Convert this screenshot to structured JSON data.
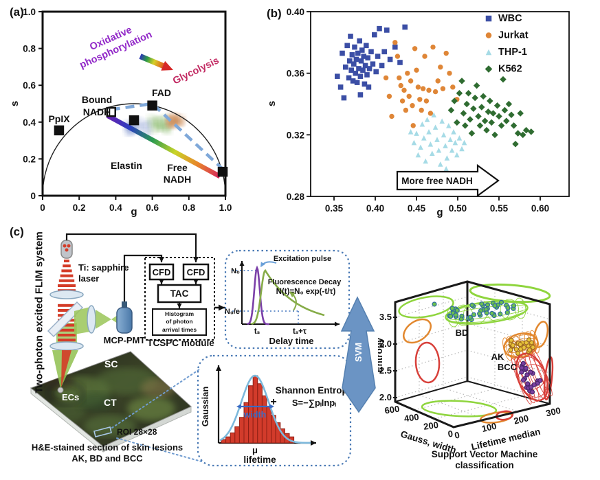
{
  "panels": {
    "a": {
      "label": "(a)"
    },
    "b": {
      "label": "(b)"
    },
    "c": {
      "label": "(c)"
    }
  },
  "chart_data": [
    {
      "id": "phasor",
      "type": "scatter",
      "xlabel": "g",
      "ylabel": "s",
      "xlim": [
        0,
        1.0
      ],
      "ylim": [
        0,
        1.0
      ],
      "xticks": [
        "0",
        "0.2",
        "0.4",
        "0.6",
        "0.8",
        "1.0"
      ],
      "yticks": [
        "0",
        "0.2",
        "0.4",
        "0.6",
        "0.8",
        "1.0"
      ],
      "semicircle": {
        "cx": 0.5,
        "cy": 0,
        "r": 0.5
      },
      "markers": [
        {
          "label": "PpIX",
          "g": 0.09,
          "s": 0.355,
          "style": "filled"
        },
        {
          "label": "Bound NADH",
          "g": 0.375,
          "s": 0.455,
          "style": "open"
        },
        {
          "label": "Elastin",
          "g": 0.5,
          "s": 0.41,
          "style": "filled"
        },
        {
          "label": "FAD",
          "g": 0.6,
          "s": 0.49,
          "style": "filled"
        },
        {
          "label": "Free NADH",
          "g": 0.985,
          "s": 0.13,
          "style": "filled"
        }
      ],
      "dashed_path": [
        [
          0.375,
          0.468
        ],
        [
          0.6,
          0.5
        ],
        [
          0.985,
          0.145
        ]
      ],
      "rainbow_line": {
        "from": [
          0.355,
          0.435
        ],
        "to": [
          0.97,
          0.105
        ]
      },
      "rainbow_colors": [
        "#6a1fb0",
        "#2b3fc0",
        "#2a9a50",
        "#c8d428",
        "#e8862a",
        "#d6265c"
      ],
      "process_arrow": {
        "start_label": "Oxidative\nphosphorylation",
        "end_label": "Glycolysis",
        "start_color": "#9229c8",
        "end_color": "#c22a62"
      },
      "clusters": [
        {
          "color": "#6f87c8",
          "cx": 0.525,
          "cy": 0.372,
          "sx": 0.055,
          "sy": 0.038
        },
        {
          "color": "#7fb45f",
          "cx": 0.638,
          "cy": 0.388,
          "sx": 0.045,
          "sy": 0.028
        },
        {
          "color": "#c8824a",
          "cx": 0.725,
          "cy": 0.402,
          "sx": 0.04,
          "sy": 0.025
        }
      ]
    },
    {
      "id": "cells",
      "type": "scatter",
      "xlabel": "g",
      "ylabel": "s",
      "xlim": [
        0.322,
        0.635
      ],
      "ylim": [
        0.28,
        0.4
      ],
      "xticks": [
        "0.35",
        "0.40",
        "0.45",
        "0.50",
        "0.55",
        "0.60"
      ],
      "yticks": [
        "0.28",
        "0.32",
        "0.36",
        "0.40"
      ],
      "annotation": "More free NADH",
      "series": [
        {
          "name": "WBC",
          "marker": "square",
          "color": "#3b4ea5",
          "points": [
            [
              0.354,
              0.358
            ],
            [
              0.358,
              0.351
            ],
            [
              0.36,
              0.373
            ],
            [
              0.362,
              0.344
            ],
            [
              0.364,
              0.364
            ],
            [
              0.366,
              0.378
            ],
            [
              0.368,
              0.357
            ],
            [
              0.369,
              0.368
            ],
            [
              0.37,
              0.384
            ],
            [
              0.371,
              0.362
            ],
            [
              0.372,
              0.372
            ],
            [
              0.373,
              0.355
            ],
            [
              0.374,
              0.366
            ],
            [
              0.375,
              0.377
            ],
            [
              0.376,
              0.36
            ],
            [
              0.377,
              0.369
            ],
            [
              0.378,
              0.354
            ],
            [
              0.379,
              0.373
            ],
            [
              0.38,
              0.363
            ],
            [
              0.381,
              0.381
            ],
            [
              0.382,
              0.346
            ],
            [
              0.382,
              0.358
            ],
            [
              0.383,
              0.368
            ],
            [
              0.384,
              0.375
            ],
            [
              0.385,
              0.362
            ],
            [
              0.386,
              0.371
            ],
            [
              0.387,
              0.353
            ],
            [
              0.388,
              0.365
            ],
            [
              0.389,
              0.378
            ],
            [
              0.39,
              0.359
            ],
            [
              0.391,
              0.37
            ],
            [
              0.392,
              0.351
            ],
            [
              0.393,
              0.363
            ],
            [
              0.395,
              0.374
            ],
            [
              0.397,
              0.366
            ],
            [
              0.399,
              0.385
            ],
            [
              0.401,
              0.361
            ],
            [
              0.403,
              0.371
            ],
            [
              0.405,
              0.389
            ],
            [
              0.408,
              0.365
            ],
            [
              0.411,
              0.374
            ],
            [
              0.414,
              0.388
            ],
            [
              0.418,
              0.369
            ],
            [
              0.424,
              0.377
            ],
            [
              0.43,
              0.367
            ],
            [
              0.436,
              0.39
            ]
          ]
        },
        {
          "name": "Jurkat",
          "marker": "circle",
          "color": "#df8637",
          "points": [
            [
              0.413,
              0.357
            ],
            [
              0.417,
              0.345
            ],
            [
              0.42,
              0.332
            ],
            [
              0.424,
              0.38
            ],
            [
              0.427,
              0.371
            ],
            [
              0.429,
              0.357
            ],
            [
              0.431,
              0.352
            ],
            [
              0.433,
              0.342
            ],
            [
              0.435,
              0.349
            ],
            [
              0.437,
              0.336
            ],
            [
              0.439,
              0.36
            ],
            [
              0.441,
              0.345
            ],
            [
              0.443,
              0.355
            ],
            [
              0.445,
              0.339
            ],
            [
              0.446,
              0.326
            ],
            [
              0.448,
              0.376
            ],
            [
              0.45,
              0.362
            ],
            [
              0.452,
              0.351
            ],
            [
              0.454,
              0.343
            ],
            [
              0.456,
              0.336
            ],
            [
              0.458,
              0.35
            ],
            [
              0.46,
              0.371
            ],
            [
              0.462,
              0.342
            ],
            [
              0.465,
              0.349
            ],
            [
              0.467,
              0.334
            ],
            [
              0.47,
              0.377
            ],
            [
              0.473,
              0.348
            ],
            [
              0.476,
              0.355
            ],
            [
              0.479,
              0.364
            ],
            [
              0.482,
              0.35
            ],
            [
              0.486,
              0.373
            ],
            [
              0.49,
              0.36
            ],
            [
              0.494,
              0.351
            ],
            [
              0.499,
              0.343
            ]
          ]
        },
        {
          "name": "THP-1",
          "marker": "triangle",
          "color": "#a6dbe6",
          "points": [
            [
              0.443,
              0.322
            ],
            [
              0.447,
              0.315
            ],
            [
              0.45,
              0.321
            ],
            [
              0.452,
              0.307
            ],
            [
              0.455,
              0.312
            ],
            [
              0.457,
              0.327
            ],
            [
              0.459,
              0.318
            ],
            [
              0.461,
              0.303
            ],
            [
              0.463,
              0.33
            ],
            [
              0.465,
              0.322
            ],
            [
              0.467,
              0.314
            ],
            [
              0.469,
              0.308
            ],
            [
              0.471,
              0.333
            ],
            [
              0.473,
              0.325
            ],
            [
              0.475,
              0.317
            ],
            [
              0.477,
              0.31
            ],
            [
              0.479,
              0.301
            ],
            [
              0.481,
              0.329
            ],
            [
              0.483,
              0.32
            ],
            [
              0.485,
              0.313
            ],
            [
              0.487,
              0.305
            ],
            [
              0.489,
              0.326
            ],
            [
              0.491,
              0.317
            ],
            [
              0.493,
              0.31
            ],
            [
              0.495,
              0.322
            ],
            [
              0.497,
              0.315
            ],
            [
              0.499,
              0.307
            ],
            [
              0.502,
              0.318
            ],
            [
              0.505,
              0.311
            ],
            [
              0.508,
              0.315
            ],
            [
              0.486,
              0.298
            ]
          ]
        },
        {
          "name": "K562",
          "marker": "diamond",
          "color": "#2f6c31",
          "points": [
            [
              0.492,
              0.336
            ],
            [
              0.496,
              0.342
            ],
            [
              0.499,
              0.328
            ],
            [
              0.502,
              0.347
            ],
            [
              0.505,
              0.355
            ],
            [
              0.507,
              0.334
            ],
            [
              0.509,
              0.326
            ],
            [
              0.511,
              0.34
            ],
            [
              0.513,
              0.347
            ],
            [
              0.515,
              0.33
            ],
            [
              0.517,
              0.321
            ],
            [
              0.519,
              0.337
            ],
            [
              0.521,
              0.344
            ],
            [
              0.523,
              0.352
            ],
            [
              0.525,
              0.332
            ],
            [
              0.527,
              0.326
            ],
            [
              0.529,
              0.338
            ],
            [
              0.531,
              0.345
            ],
            [
              0.533,
              0.329
            ],
            [
              0.535,
              0.323
            ],
            [
              0.537,
              0.335
            ],
            [
              0.539,
              0.342
            ],
            [
              0.541,
              0.328
            ],
            [
              0.543,
              0.334
            ],
            [
              0.545,
              0.32
            ],
            [
              0.548,
              0.339
            ],
            [
              0.55,
              0.332
            ],
            [
              0.553,
              0.326
            ],
            [
              0.555,
              0.356
            ],
            [
              0.557,
              0.336
            ],
            [
              0.559,
              0.329
            ],
            [
              0.562,
              0.34
            ],
            [
              0.565,
              0.333
            ],
            [
              0.568,
              0.326
            ],
            [
              0.57,
              0.314
            ],
            [
              0.573,
              0.321
            ],
            [
              0.576,
              0.334
            ],
            [
              0.579,
              0.32
            ],
            [
              0.583,
              0.323
            ],
            [
              0.589,
              0.322
            ]
          ]
        }
      ]
    },
    {
      "id": "decay",
      "type": "line",
      "xlabel": "Delay time",
      "annotations": {
        "excitation": "Excitation pulse",
        "decay": "Fluorescence Decay",
        "formula": "N(t)=N₀ exp(-t/τ)"
      },
      "ytick_labels": [
        "N₀",
        "N₀/e"
      ],
      "xtick_labels": [
        "tₛ",
        "tₛ+τ"
      ]
    },
    {
      "id": "gauss_hist",
      "type": "bar",
      "ylabel": "Gaussian",
      "xlabel": "lifetime",
      "values": [
        5,
        9,
        15,
        24,
        38,
        60,
        85,
        100,
        88,
        70,
        54,
        41,
        30,
        21,
        14,
        9
      ],
      "mu_label": "μ",
      "width_label": "width",
      "plus": "+",
      "entropy_title": "Shannon Entropy",
      "entropy_formula": "S=−∑pᵢlnpᵢ"
    },
    {
      "id": "svm3d",
      "type": "scatter3d",
      "zlabel": "Entropy",
      "zticks": [
        "3.5",
        "3.0",
        "2.5",
        "2.0"
      ],
      "xlabel": "Gauss, width",
      "xticks": [
        "600",
        "400",
        "200",
        "0"
      ],
      "ylabel": "Lifetime median",
      "yticks": [
        "0",
        "100",
        "200",
        "300"
      ],
      "caption": "Support Vector Machine\nclassification",
      "groups": [
        {
          "name": "BD",
          "dot_color": "#6cc04e",
          "dot_edge": "#2d6a9e",
          "mesh_color": "#8fd53e",
          "count": 40
        },
        {
          "name": "AK",
          "dot_color": "#e7c33b",
          "dot_edge": "#a06a20",
          "mesh_color": "#e2882f",
          "count": 26
        },
        {
          "name": "BCC",
          "dot_color": "#7b3fa0",
          "dot_edge": "#47256b",
          "mesh_color": "#d8403a",
          "count": 22
        }
      ]
    }
  ],
  "diagram": {
    "system_label": "Two-photon excited FLIM system",
    "laser_label": "Ti: sapphire\nlaser",
    "detector_label": "MCP-PMT",
    "module": {
      "cfd1": "CFD",
      "cfd2": "CFD",
      "tac": "TAC",
      "histogram": "Histogram\nof photon\narrival times",
      "label": "TCSPC module"
    },
    "svm": "SVM",
    "sample": {
      "sc": "SC",
      "ct": "CT",
      "ecs": "ECs",
      "roi": "ROI 28×28",
      "caption": "H&E-stained section of skin lesions\nAK, BD and BCC"
    }
  }
}
